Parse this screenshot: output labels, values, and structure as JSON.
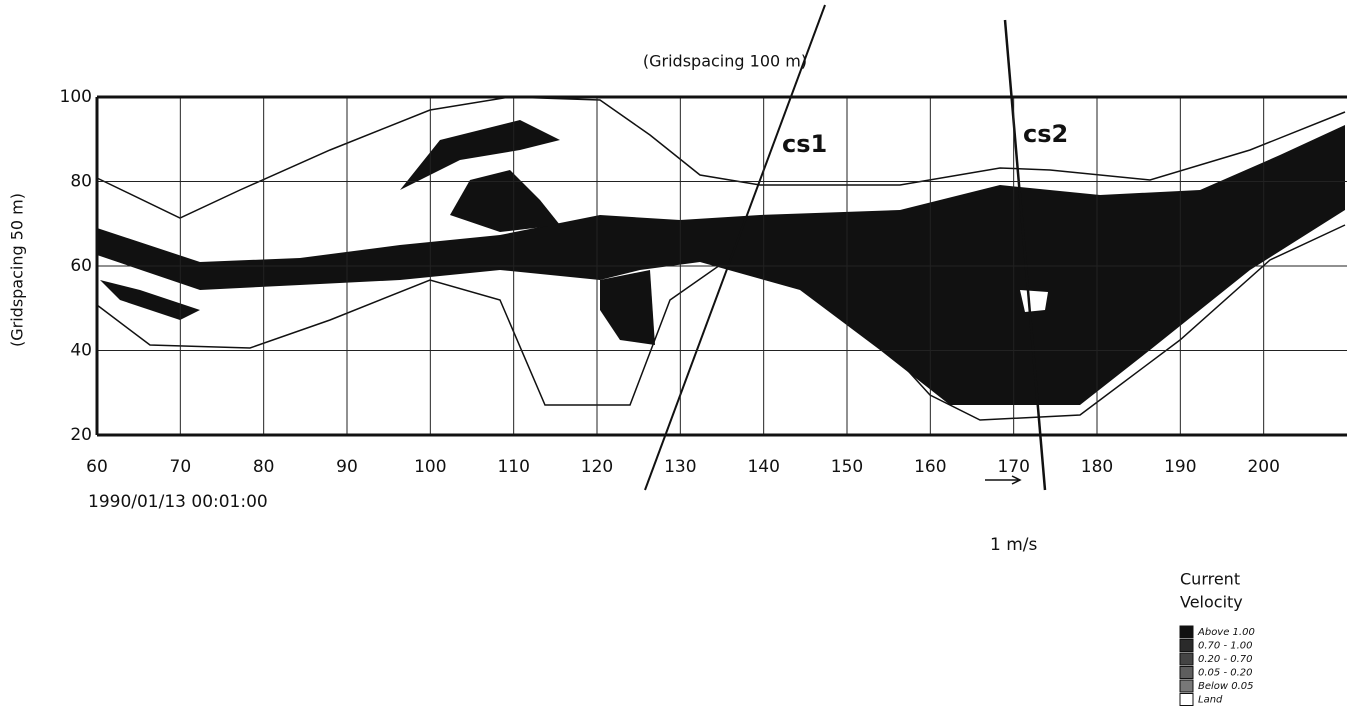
{
  "chart_data": {
    "type": "map",
    "title": "(Gridspacing 100 m)",
    "y_label": "(Gridspacing 50 m)",
    "timestamp": "1990/01/13 00:01:00",
    "scale_label": "1 m/s",
    "annotations": [
      "cs1",
      "cs2"
    ],
    "legend_title": [
      "Current",
      "Velocity"
    ],
    "legend": [
      {
        "label": "Above 1.00",
        "color": "#111111"
      },
      {
        "label": "0.70 - 1.00",
        "color": "#2a2a2a"
      },
      {
        "label": "0.20 - 0.70",
        "color": "#444444"
      },
      {
        "label": "0.05 - 0.20",
        "color": "#5e5e5e"
      },
      {
        "label": "Below 0.05",
        "color": "#787878"
      },
      {
        "label": "Land",
        "color": "#ffffff"
      }
    ],
    "xlim": [
      60,
      210
    ],
    "xticks": [
      60,
      70,
      80,
      90,
      100,
      110,
      120,
      130,
      140,
      150,
      160,
      170,
      180,
      190,
      200
    ],
    "ylim": [
      20,
      100
    ],
    "yticks": [
      20,
      40,
      60,
      80,
      100
    ],
    "grid": true
  }
}
